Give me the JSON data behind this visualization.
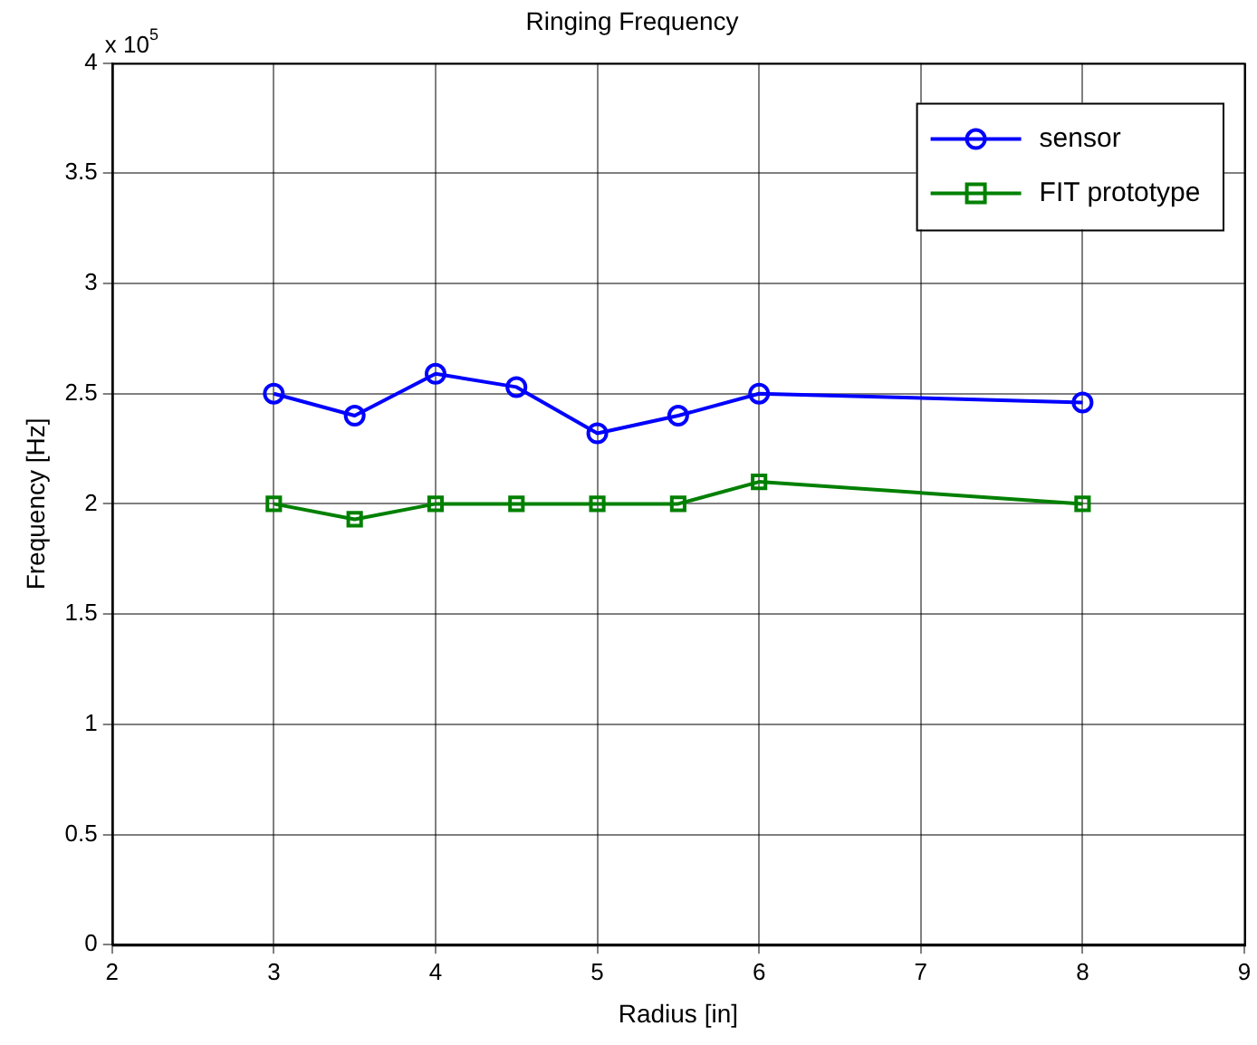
{
  "chart_data": {
    "type": "line",
    "title": "Ringing Frequency",
    "xlabel": "Radius [in]",
    "ylabel": "Frequency [Hz]",
    "annotations": [
      "x 10$^{5}$"
    ],
    "xlim": [
      2,
      9
    ],
    "xticks": [
      2,
      3,
      4,
      5,
      6,
      7,
      8,
      9
    ],
    "ylim": [
      0,
      4
    ],
    "yticks": [
      0,
      0.5,
      1,
      1.5,
      2,
      2.5,
      3,
      3.5,
      4
    ],
    "grid": true,
    "legend": "top right",
    "line_style": "solid",
    "series": [
      {
        "name": "sensor",
        "color": "#0000ff",
        "marker": "circle",
        "x": [
          3,
          3.5,
          4,
          4.5,
          5,
          5.5,
          6,
          8
        ],
        "values": [
          2.5,
          2.4,
          2.59,
          2.53,
          2.32,
          2.4,
          2.5,
          2.46
        ]
      },
      {
        "name": "FIT prototype",
        "color": "#008000",
        "marker": "square",
        "x": [
          3,
          3.5,
          4,
          4.5,
          5,
          5.5,
          6,
          8
        ],
        "values": [
          2.0,
          1.93,
          2.0,
          2.0,
          2.0,
          2.0,
          2.1,
          2.0
        ]
      }
    ]
  }
}
